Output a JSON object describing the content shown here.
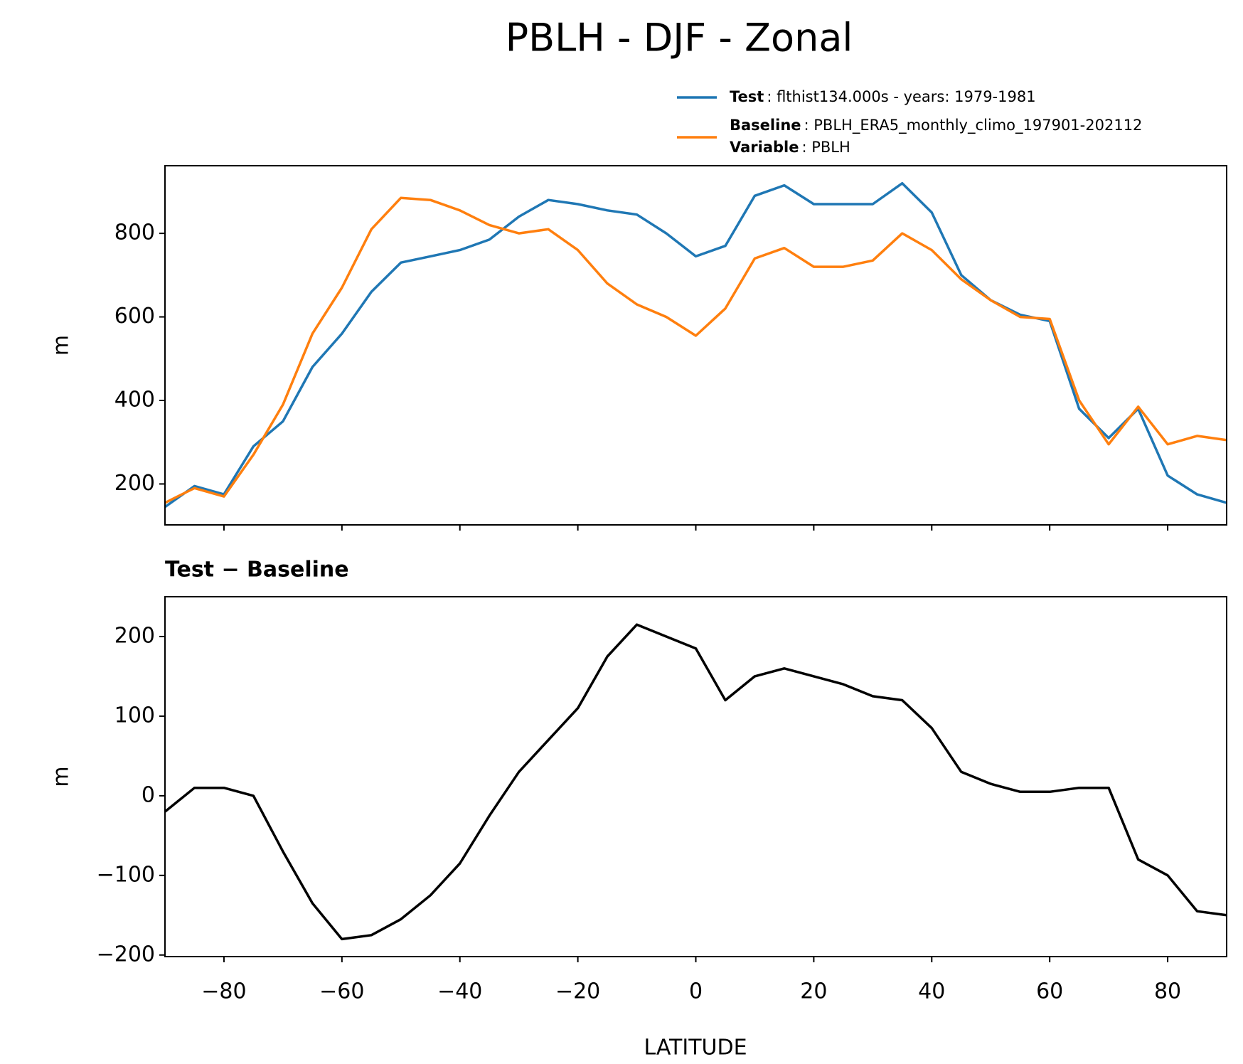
{
  "chart_data": [
    {
      "type": "line",
      "title": "PBLH - DJF - Zonal",
      "ylabel": "m",
      "x": [
        -90,
        -85,
        -80,
        -75,
        -70,
        -65,
        -60,
        -55,
        -50,
        -45,
        -40,
        -35,
        -30,
        -25,
        -20,
        -15,
        -10,
        -5,
        0,
        5,
        10,
        15,
        20,
        25,
        30,
        35,
        40,
        45,
        50,
        55,
        60,
        65,
        70,
        75,
        80,
        85,
        90
      ],
      "series": [
        {
          "name": "Test",
          "label": ": flthist134.000s - years: 1979-1981",
          "color": "#1f77b4",
          "values": [
            145,
            195,
            175,
            290,
            350,
            480,
            560,
            660,
            730,
            745,
            760,
            785,
            840,
            880,
            870,
            855,
            845,
            800,
            745,
            770,
            890,
            915,
            870,
            870,
            870,
            920,
            850,
            700,
            640,
            605,
            590,
            380,
            310,
            380,
            220,
            175,
            155
          ]
        },
        {
          "name": "Baseline",
          "label": ": PBLH_ERA5_monthly_climo_197901-202112",
          "color": "#ff7f0e",
          "values": [
            155,
            190,
            170,
            270,
            390,
            560,
            670,
            810,
            885,
            880,
            855,
            820,
            800,
            810,
            760,
            680,
            630,
            600,
            555,
            620,
            740,
            765,
            720,
            720,
            735,
            800,
            760,
            690,
            640,
            600,
            595,
            400,
            295,
            385,
            295,
            315,
            305
          ]
        }
      ],
      "variable": {
        "name": "Variable",
        "label": ": PBLH"
      },
      "xlim": [
        -90,
        90
      ],
      "xticks": [
        -80,
        -60,
        -40,
        -20,
        0,
        20,
        40,
        60,
        80
      ],
      "ylim": [
        102,
        962
      ],
      "yticks": [
        200,
        400,
        600,
        800
      ]
    },
    {
      "type": "line",
      "title": "Test − Baseline",
      "ylabel": "m",
      "xlabel": "LATITUDE",
      "x": [
        -90,
        -85,
        -80,
        -75,
        -70,
        -65,
        -60,
        -55,
        -50,
        -45,
        -40,
        -35,
        -30,
        -25,
        -20,
        -15,
        -10,
        -5,
        0,
        5,
        10,
        15,
        20,
        25,
        30,
        35,
        40,
        45,
        50,
        55,
        60,
        65,
        70,
        75,
        80,
        85,
        90
      ],
      "series": [
        {
          "color": "#000000",
          "values": [
            -20,
            10,
            10,
            0,
            -70,
            -135,
            -180,
            -175,
            -155,
            -125,
            -85,
            -25,
            30,
            70,
            110,
            175,
            215,
            200,
            185,
            120,
            150,
            160,
            150,
            140,
            125,
            120,
            85,
            30,
            15,
            5,
            5,
            10,
            10,
            -80,
            -100,
            -145,
            -150
          ]
        }
      ],
      "xlim": [
        -90,
        90
      ],
      "xticks": [
        {
          "value": -80,
          "label": "−80"
        },
        {
          "value": -60,
          "label": "−60"
        },
        {
          "value": -40,
          "label": "−40"
        },
        {
          "value": -20,
          "label": "−20"
        },
        0,
        20,
        40,
        60,
        80
      ],
      "ylim": [
        -202,
        250
      ],
      "yticks": [
        {
          "value": -200,
          "label": "−200"
        },
        {
          "value": -100,
          "label": "−100"
        },
        0,
        100,
        200
      ]
    }
  ]
}
